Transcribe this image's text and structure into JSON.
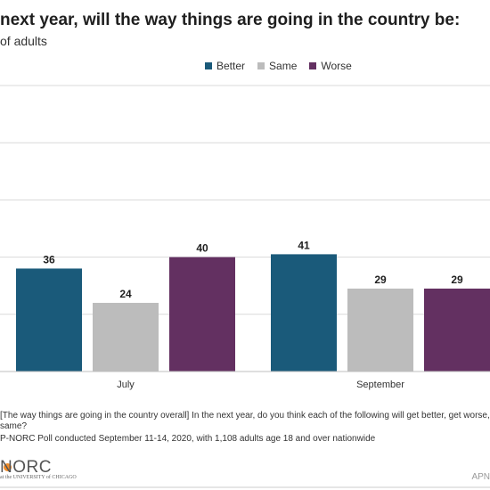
{
  "header": {
    "title": "next year, will the way things are going in the country be:",
    "subtitle": "of adults"
  },
  "chart_data": {
    "type": "bar",
    "categories": [
      "July",
      "September"
    ],
    "series": [
      {
        "name": "Better",
        "values": [
          36,
          41
        ],
        "color": "#1a5a7a"
      },
      {
        "name": "Same",
        "values": [
          24,
          29
        ],
        "color": "#bcbcbc"
      },
      {
        "name": "Worse",
        "values": [
          40,
          29
        ],
        "color": "#633061"
      }
    ],
    "ylim": [
      0,
      100
    ],
    "grid": true,
    "legend_position": "top"
  },
  "footnotes": {
    "line1": "[The way things are going in the country overall] In the next year, do you think each of the following will get better, get worse, or",
    "line2": "same?",
    "line3": "P-NORC Poll conducted September 11-14, 2020, with 1,108 adults age 18 and over nationwide"
  },
  "branding": {
    "logo_main": "NORC",
    "logo_sub": "at the UNIVERSITY of CHICAGO",
    "ap_text": "APN"
  }
}
